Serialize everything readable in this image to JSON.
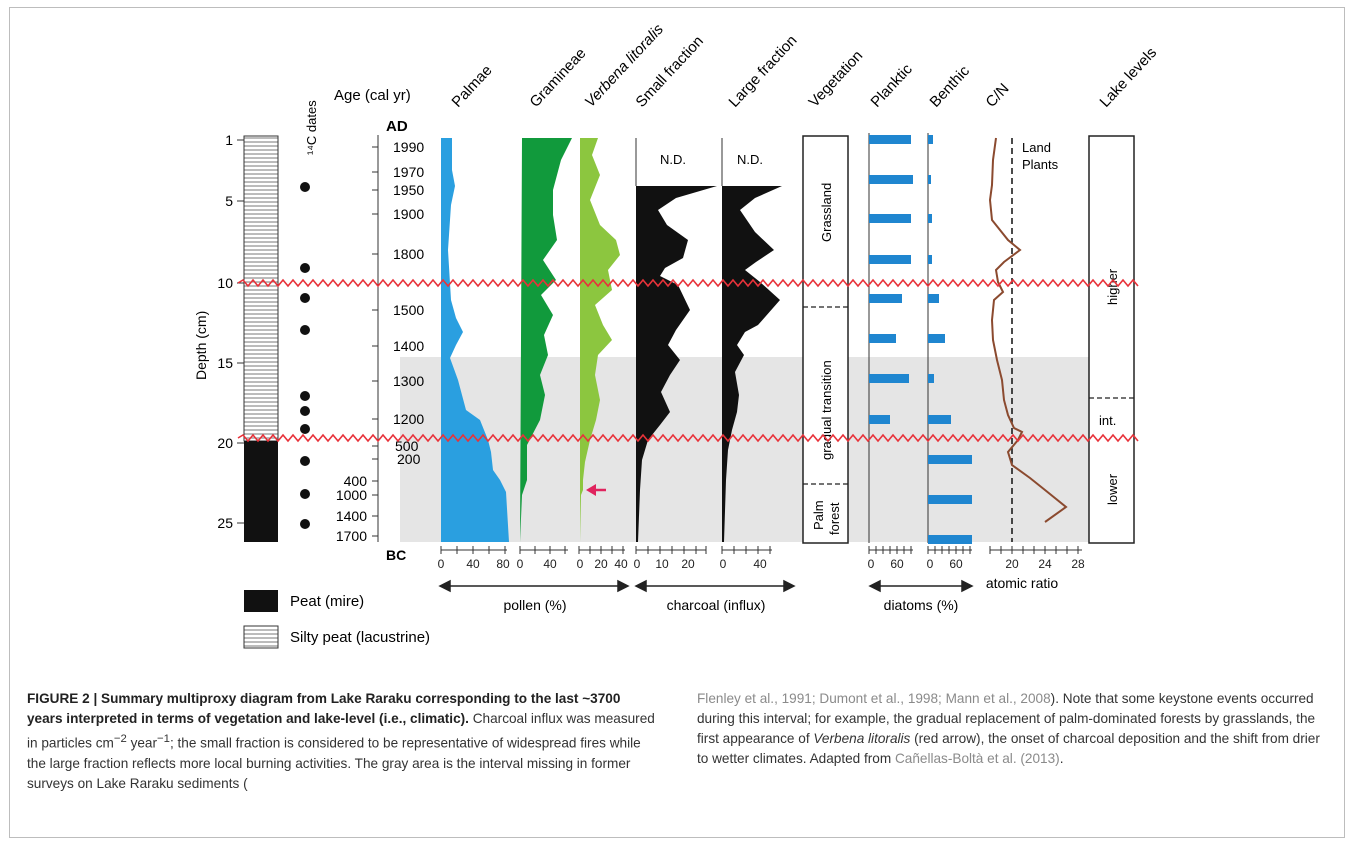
{
  "figure": {
    "header": {
      "c14_dates": "¹⁴C dates",
      "age": "Age  (cal yr)",
      "columns": [
        "Palmae",
        "Gramineae",
        "Verbena litoralis",
        "Small fraction",
        "Large fraction",
        "Vegetation",
        "Planktic",
        "Benthic",
        "C/N",
        "Lake levels"
      ]
    },
    "depth_axis": {
      "label": "Depth (cm)",
      "ticks": [
        "1",
        "5",
        "10",
        "15",
        "20",
        "25"
      ]
    },
    "age_axis": {
      "top": "AD",
      "bottom": "BC",
      "ad_ticks": [
        "1990",
        "1970",
        "1950",
        "1900",
        "1800",
        "1500",
        "1400",
        "1300",
        "1200",
        "500",
        "200"
      ],
      "bc_ticks": [
        "400",
        "1000",
        "1400",
        "1700"
      ]
    },
    "pollen_ticks": {
      "palmae": [
        "0",
        "40",
        "80"
      ],
      "gramineae": [
        "0",
        "40"
      ],
      "verbena": [
        "0",
        "20",
        "40"
      ]
    },
    "charcoal_ticks": {
      "small": [
        "0",
        "10",
        "20"
      ],
      "large": [
        "0",
        "40"
      ]
    },
    "diatom_ticks": {
      "planktic": [
        "0",
        "60"
      ],
      "benthic": [
        "0",
        "60"
      ]
    },
    "cn_ticks": [
      "20",
      "24",
      "28"
    ],
    "nd_small": "N.D.",
    "nd_large": "N.D.",
    "land_plants": [
      "Land",
      "Plants"
    ],
    "group_labels": {
      "pollen": "pollen (%)",
      "charcoal": "charcoal (influx)",
      "diatoms": "diatoms (%)",
      "atomic": "atomic ratio"
    },
    "vegetation_zones": [
      "Grassland",
      "gradual transition",
      "Palm",
      "forest"
    ],
    "lake_levels": [
      "higher",
      "int.",
      "lower"
    ],
    "legend": {
      "peat": "Peat (mire)",
      "silty": "Silty peat (lacustrine)"
    },
    "colors": {
      "palmae": "#2a9fe0",
      "gramineae": "#119a3c",
      "verbena": "#8cc63f",
      "charcoal": "#111111",
      "diatom": "#1f86d0",
      "cn_line": "#8b4a2f",
      "wave": "#e8323a",
      "gray_band": "#e5e5e5",
      "arrow": "#e0245e"
    }
  },
  "caption": {
    "title": "FIGURE 2 | Summary multiproxy diagram from Lake Raraku corresponding to the last ~3700 years interpreted in terms of vegetation and lake-level (i.e., climatic).",
    "p1a": " Charcoal influx was measured in particles cm",
    "sup1": "−2",
    "p1b": " year",
    "sup2": "−1",
    "p1c": "; the small fraction is considered to be representative of widespread fires while the large fraction reflects more local burning activities. The gray area is the interval missing in former surveys on Lake Raraku sediments (",
    "ref1": "Flenley et al., 1991; Dumont et al., 1998; Mann et al., 2008",
    "p2": "). Note that some keystone events occurred during this interval; for example, the gradual replacement of palm-dominated forests by grasslands, the first appearance of ",
    "verbena": "Verbena litoralis",
    "p3": " (red arrow), the onset of charcoal deposition and the shift from drier to wetter climates. Adapted from ",
    "ref2": "Cañellas-Boltà et al. (2013)",
    "p4": "."
  }
}
